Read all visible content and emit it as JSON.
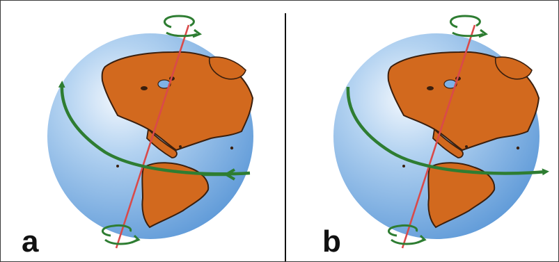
{
  "figure": {
    "panels": [
      {
        "id": "a",
        "label": "a",
        "equator_arrow": "right-to-left"
      },
      {
        "id": "b",
        "label": "b",
        "equator_arrow": "left-to-right"
      }
    ]
  },
  "colors": {
    "ocean": "#7fb2e5",
    "land": "#d2691e",
    "land_outline": "#3a1f0e",
    "arrow": "#2e7d32",
    "axis": "#d94a4a"
  },
  "icons": [
    "globe-icon",
    "rotation-arrow-icon",
    "earth-axis-icon"
  ]
}
